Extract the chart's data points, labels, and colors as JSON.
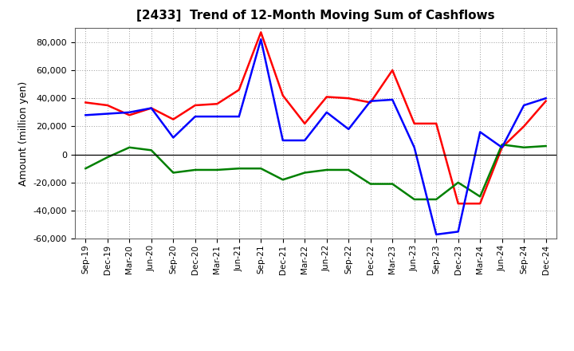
{
  "title": "[2433]  Trend of 12-Month Moving Sum of Cashflows",
  "ylabel": "Amount (million yen)",
  "background_color": "#ffffff",
  "grid_color": "#999999",
  "x_labels": [
    "Sep-19",
    "Dec-19",
    "Mar-20",
    "Jun-20",
    "Sep-20",
    "Dec-20",
    "Mar-21",
    "Jun-21",
    "Sep-21",
    "Dec-21",
    "Mar-22",
    "Jun-22",
    "Sep-22",
    "Dec-22",
    "Mar-23",
    "Jun-23",
    "Sep-23",
    "Dec-23",
    "Mar-24",
    "Jun-24",
    "Sep-24",
    "Dec-24"
  ],
  "operating_cashflow": [
    37000,
    35000,
    28000,
    33000,
    25000,
    35000,
    36000,
    46000,
    87000,
    42000,
    22000,
    41000,
    40000,
    37000,
    60000,
    22000,
    22000,
    -35000,
    -35000,
    5000,
    20000,
    38000
  ],
  "investing_cashflow": [
    -10000,
    -2000,
    5000,
    3000,
    -13000,
    -11000,
    -11000,
    -10000,
    -10000,
    -18000,
    -13000,
    -11000,
    -11000,
    -21000,
    -21000,
    -32000,
    -32000,
    -20000,
    -30000,
    7000,
    5000,
    6000
  ],
  "free_cashflow": [
    28000,
    29000,
    30000,
    33000,
    12000,
    27000,
    27000,
    27000,
    82000,
    10000,
    10000,
    30000,
    18000,
    38000,
    39000,
    5000,
    -57000,
    -55000,
    16000,
    5000,
    35000,
    40000
  ],
  "operating_color": "#ff0000",
  "investing_color": "#008000",
  "free_color": "#0000ff",
  "ylim": [
    -60000,
    90000
  ],
  "yticks": [
    -60000,
    -40000,
    -20000,
    0,
    20000,
    40000,
    60000,
    80000
  ]
}
